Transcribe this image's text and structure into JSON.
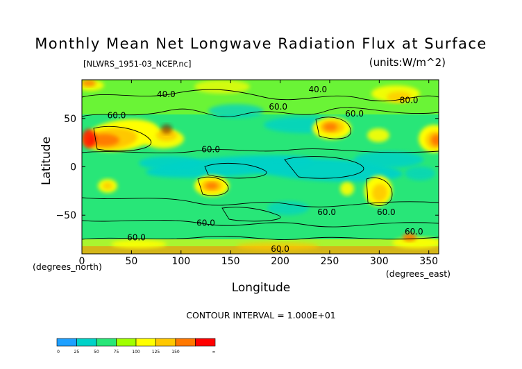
{
  "chart_data": {
    "type": "heatmap",
    "title": "Monthly Mean Net Longwave Radiation Flux at Surface",
    "subtitle": "[NLWRS_1951-03_NCEP.nc]",
    "units": "(units:W/m^2)",
    "xlabel": "Longitude",
    "ylabel": "Latitude",
    "x_unit_label": "(degrees_east)",
    "y_unit_label": "(degrees_north)",
    "xlim": [
      0,
      360
    ],
    "ylim": [
      -90,
      90
    ],
    "x_ticks": [
      0,
      50,
      100,
      150,
      200,
      250,
      300,
      350
    ],
    "y_ticks": [
      50,
      0,
      -50
    ],
    "contour_interval_label": "CONTOUR INTERVAL = 1.000E+01",
    "contour_labels": [
      {
        "text": "40.0",
        "lon": 85,
        "lat": 75
      },
      {
        "text": "40.0",
        "lon": 238,
        "lat": 80
      },
      {
        "text": "60.0",
        "lon": 35,
        "lat": 53
      },
      {
        "text": "60.0",
        "lon": 198,
        "lat": 62
      },
      {
        "text": "60.0",
        "lon": 275,
        "lat": 55
      },
      {
        "text": "80.0",
        "lon": 330,
        "lat": 69
      },
      {
        "text": "60.0",
        "lon": 130,
        "lat": 18
      },
      {
        "text": "60.0",
        "lon": 247,
        "lat": -47
      },
      {
        "text": "60.0",
        "lon": 125,
        "lat": -58
      },
      {
        "text": "60.0",
        "lon": 307,
        "lat": -47
      },
      {
        "text": "60.0",
        "lon": 335,
        "lat": -67
      },
      {
        "text": "60.0",
        "lon": 55,
        "lat": -73
      },
      {
        "text": "60.0",
        "lon": 200,
        "lat": -85
      }
    ],
    "colorbar": {
      "levels": [
        "0",
        "25",
        "50",
        "75",
        "100",
        "125",
        "150",
        "∞"
      ],
      "colors": [
        "#1ea0ff",
        "#00d2c8",
        "#28e678",
        "#a0ff00",
        "#ffff00",
        "#ffc800",
        "#ff7800",
        "#ff0000"
      ]
    }
  }
}
